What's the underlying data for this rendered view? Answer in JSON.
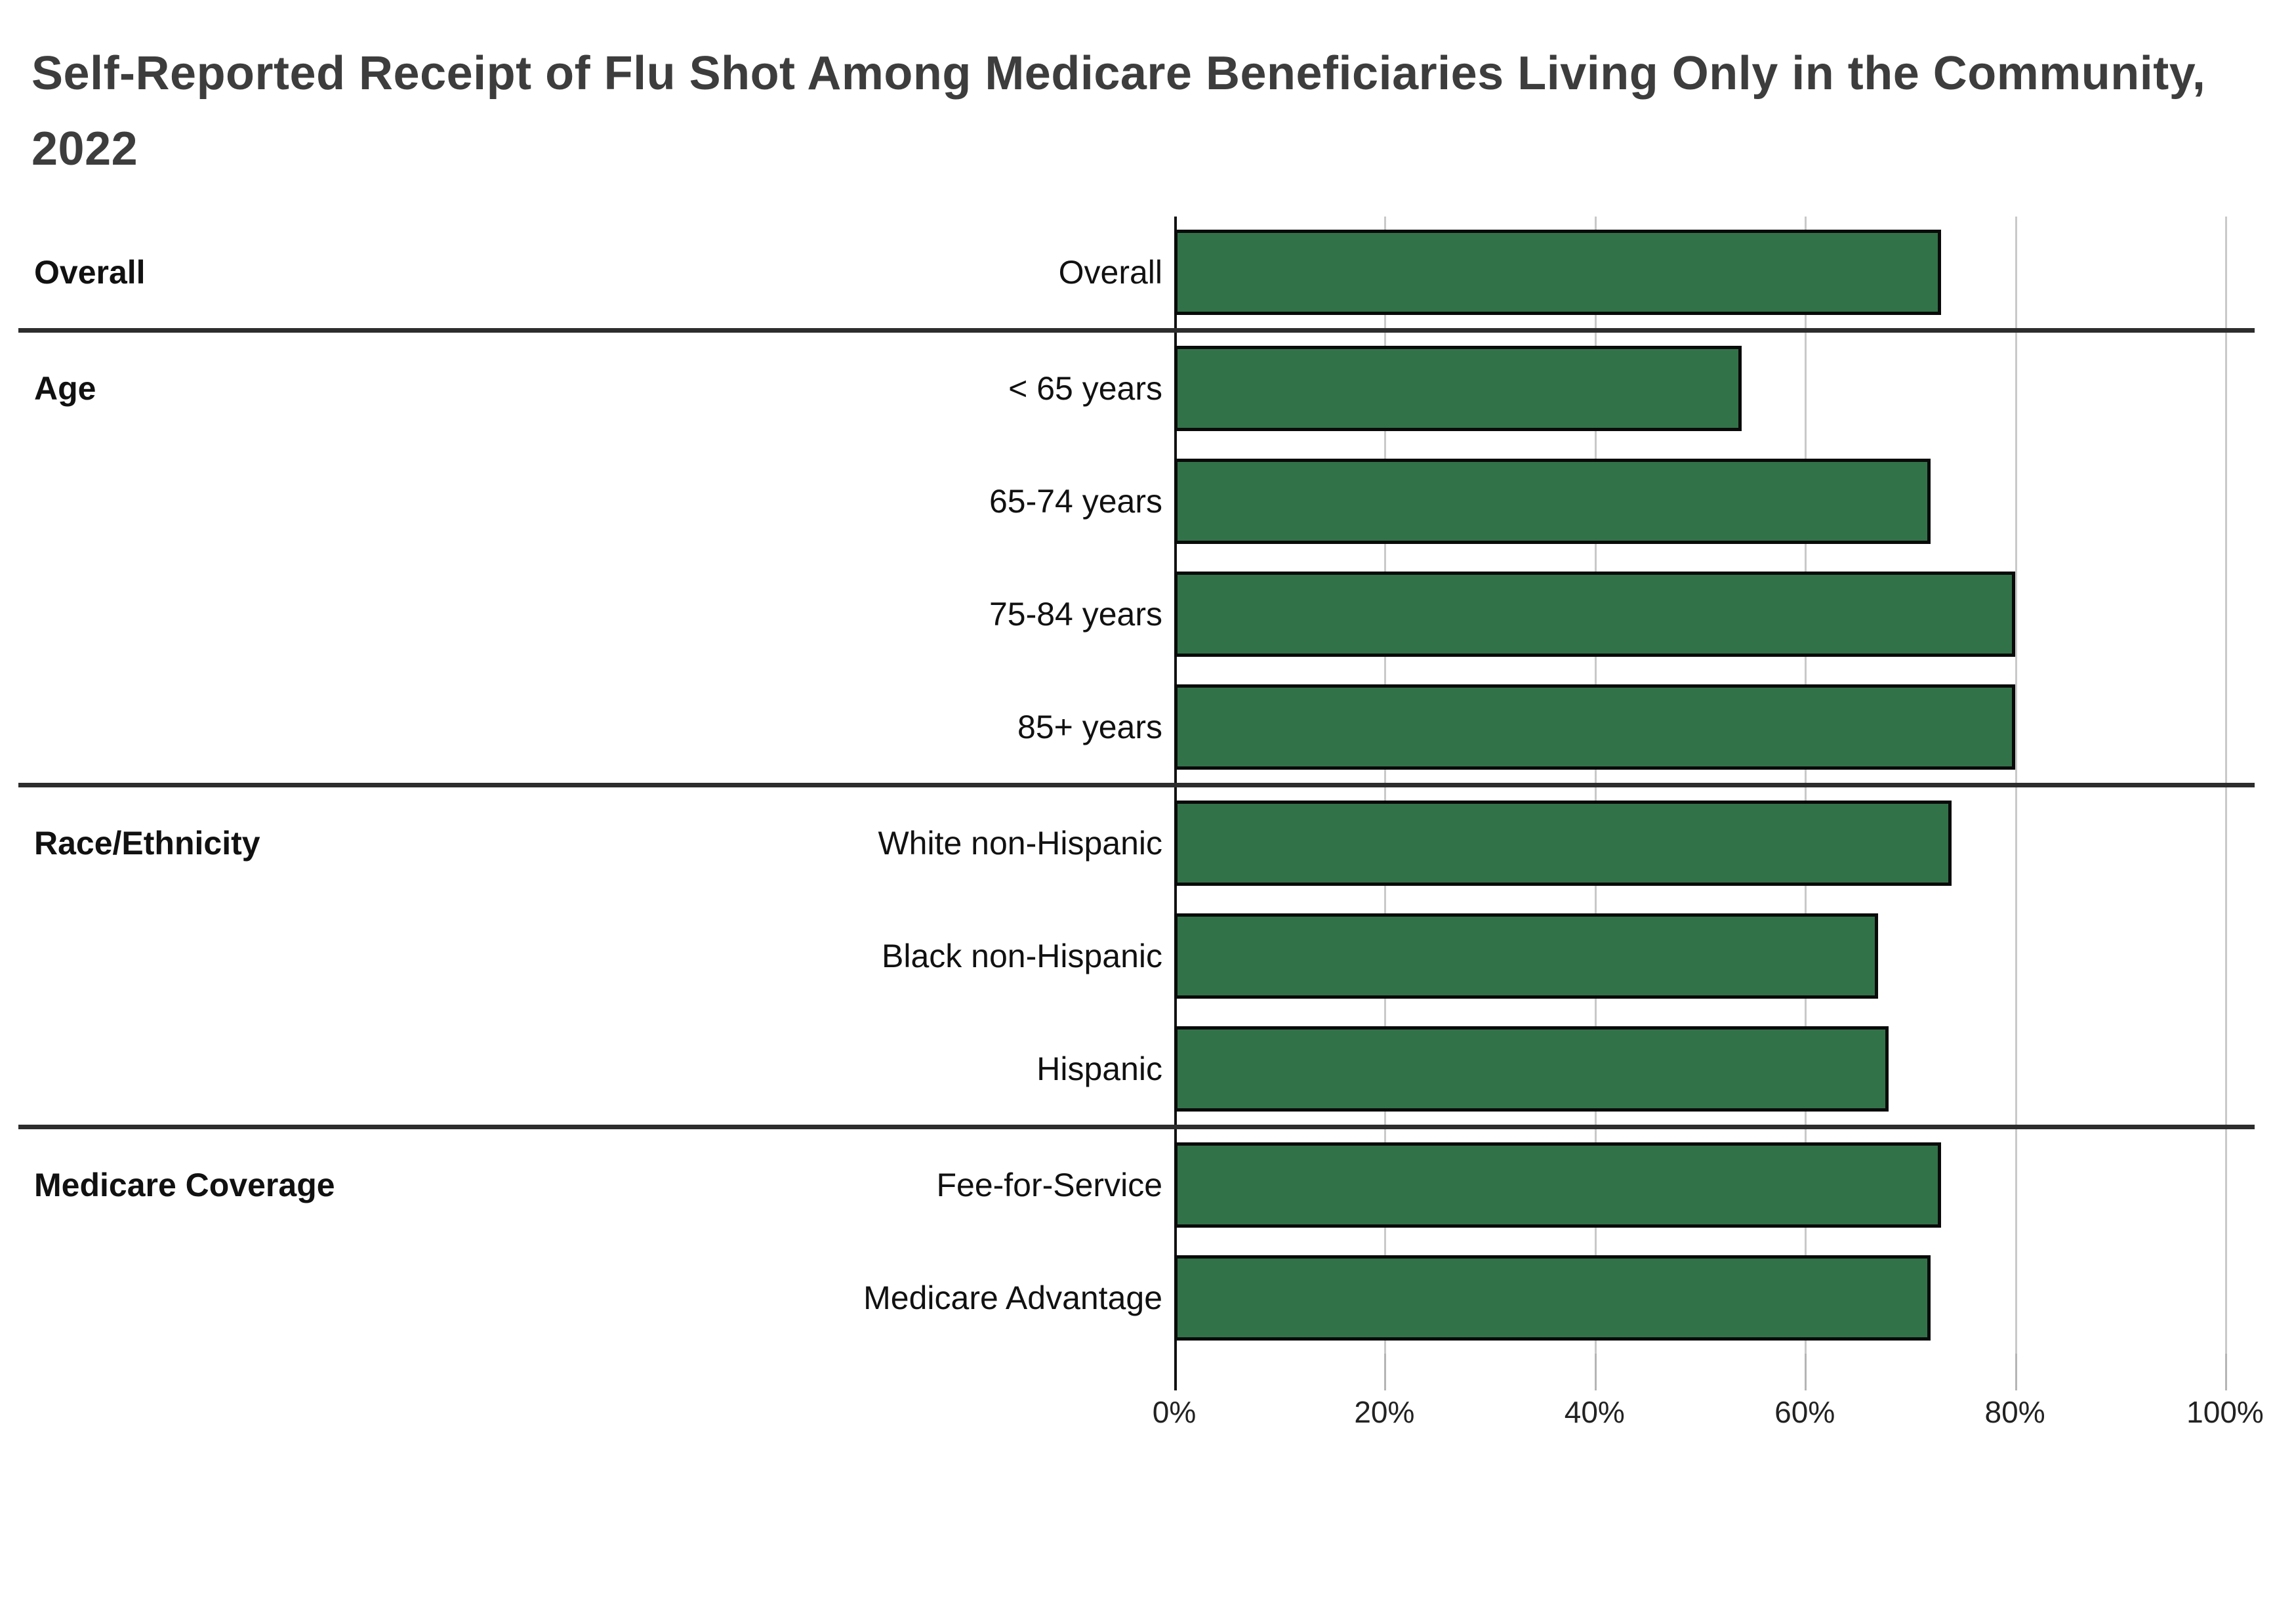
{
  "title": "Self-Reported Receipt of Flu Shot Among Medicare Beneficiaries Living Only in the Community, 2022",
  "colors": {
    "bar_fill": "#327249",
    "bar_border": "#0a0a0a",
    "gridline": "#c9c9c9",
    "axis_line": "#111111",
    "group_divider": "#2d2d2d",
    "title_text": "#3d3d3d",
    "label_text": "#111111"
  },
  "chart_data": {
    "type": "bar",
    "orientation": "horizontal",
    "title": "Self-Reported Receipt of Flu Shot Among Medicare Beneficiaries Living Only in the Community, 2022",
    "value_unit": "%",
    "xlim": [
      0,
      100
    ],
    "x_ticks": [
      0,
      20,
      40,
      60,
      80,
      100
    ],
    "x_tick_labels": [
      "0%",
      "20%",
      "40%",
      "60%",
      "80%",
      "100%"
    ],
    "grid": true,
    "legend": false,
    "groups": [
      {
        "name": "Overall",
        "rows": [
          {
            "label": "Overall",
            "value": 73
          }
        ]
      },
      {
        "name": "Age",
        "rows": [
          {
            "label": "< 65 years",
            "value": 54
          },
          {
            "label": "65-74 years",
            "value": 72
          },
          {
            "label": "75-84 years",
            "value": 80
          },
          {
            "label": "85+ years",
            "value": 80
          }
        ]
      },
      {
        "name": "Race/Ethnicity",
        "rows": [
          {
            "label": "White non-Hispanic",
            "value": 74
          },
          {
            "label": "Black non-Hispanic",
            "value": 67
          },
          {
            "label": "Hispanic",
            "value": 68
          }
        ]
      },
      {
        "name": "Medicare Coverage",
        "rows": [
          {
            "label": "Fee-for-Service",
            "value": 73
          },
          {
            "label": "Medicare Advantage",
            "value": 72
          }
        ]
      }
    ]
  }
}
